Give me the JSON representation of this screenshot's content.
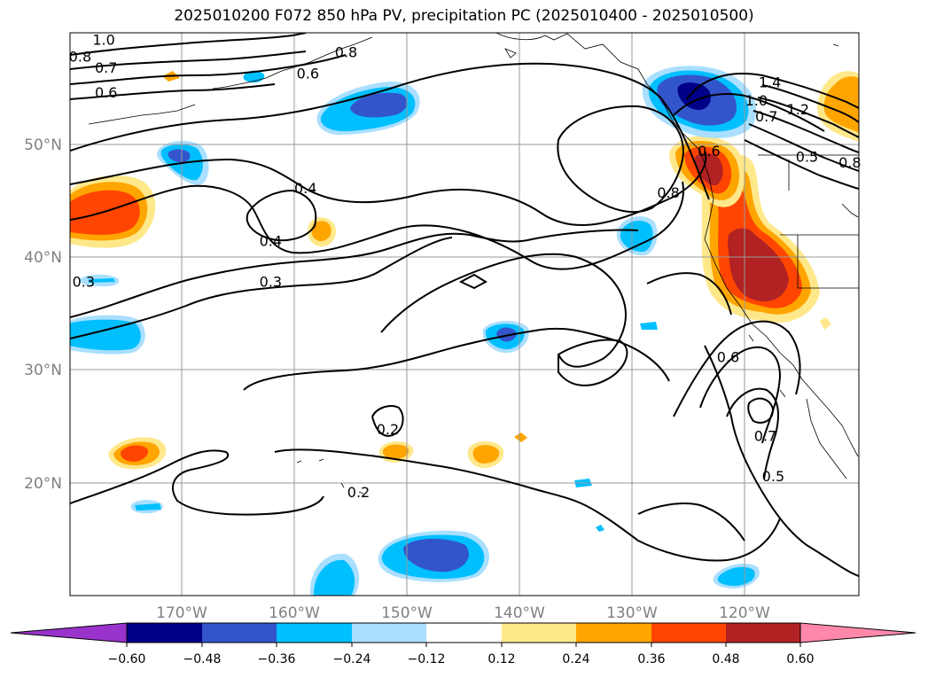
{
  "title": "2025010200 F072 850 hPa PV, precipitation PC (2025010400 - 2025010500)",
  "map": {
    "lon_range": [
      -180,
      -110
    ],
    "lat_range": [
      10,
      60
    ],
    "lon_ticks": [
      -170,
      -160,
      -150,
      -140,
      -130,
      -120
    ],
    "lon_labels": [
      "170°W",
      "160°W",
      "150°W",
      "140°W",
      "130°W",
      "120°W"
    ],
    "lat_ticks": [
      20,
      30,
      40,
      50
    ],
    "lat_labels": [
      "20°N",
      "30°N",
      "40°N",
      "50°N"
    ],
    "grid": true
  },
  "colorbar": {
    "extend": "both",
    "boundaries": [
      -0.72,
      -0.6,
      -0.48,
      -0.36,
      -0.24,
      -0.12,
      0.12,
      0.24,
      0.36,
      0.48,
      0.6,
      0.72
    ],
    "colors": [
      "#9933cc",
      "#000088",
      "#3355cc",
      "#00bfff",
      "#aadfff",
      "#ffffff",
      "#ffe88a",
      "#ffa500",
      "#ff4500",
      "#b22222",
      "#ff88aa"
    ],
    "tick_values": [
      -0.6,
      -0.48,
      -0.36,
      -0.24,
      -0.12,
      0.12,
      0.24,
      0.36,
      0.48,
      0.6
    ],
    "tick_labels": [
      "−0.60",
      "−0.48",
      "−0.36",
      "−0.24",
      "−0.12",
      "0.12",
      "0.24",
      "0.36",
      "0.48",
      "0.60"
    ]
  },
  "contour_labels": [
    {
      "text": "1.0",
      "lon": -177,
      "lat": 59.3
    },
    {
      "text": "0.8",
      "lon": -179.1,
      "lat": 57.8
    },
    {
      "text": "0.7",
      "lon": -176.8,
      "lat": 56.8
    },
    {
      "text": "0.6",
      "lon": -176.8,
      "lat": 54.6
    },
    {
      "text": "0.6",
      "lon": -158.9,
      "lat": 56.3
    },
    {
      "text": "0.8",
      "lon": -155.5,
      "lat": 58.2
    },
    {
      "text": "1.4",
      "lon": -117.9,
      "lat": 55.5
    },
    {
      "text": "1.0",
      "lon": -119.1,
      "lat": 53.9
    },
    {
      "text": "1.2",
      "lon": -115.4,
      "lat": 53.1
    },
    {
      "text": "0.7",
      "lon": -118.2,
      "lat": 52.5
    },
    {
      "text": "0.5",
      "lon": -114.6,
      "lat": 48.9
    },
    {
      "text": "0.8",
      "lon": -110.8,
      "lat": 48.4
    },
    {
      "text": "0.6",
      "lon": -123.3,
      "lat": 49.4
    },
    {
      "text": "0.8",
      "lon": -126.9,
      "lat": 45.7
    },
    {
      "text": "0.4",
      "lon": -159.1,
      "lat": 46.1
    },
    {
      "text": "0.4",
      "lon": -162.2,
      "lat": 41.4
    },
    {
      "text": "0.3",
      "lon": -178.8,
      "lat": 37.8
    },
    {
      "text": "0.3",
      "lon": -162.2,
      "lat": 37.8
    },
    {
      "text": "0.6",
      "lon": -121.6,
      "lat": 31.1
    },
    {
      "text": "0.7",
      "lon": -118.3,
      "lat": 24.1
    },
    {
      "text": "0.5",
      "lon": -117.6,
      "lat": 20.5
    },
    {
      "text": "0.2",
      "lon": -151.8,
      "lat": 24.7
    },
    {
      "text": "0.2",
      "lon": -154.4,
      "lat": 19.1
    }
  ]
}
